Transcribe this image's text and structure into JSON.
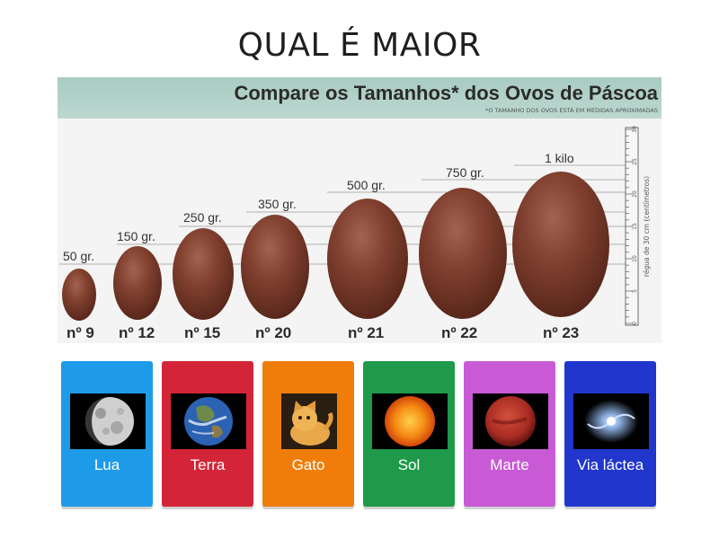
{
  "title": "QUAL É MAIOR",
  "figure": {
    "heading": "Compare os Tamanhos* dos Ovos de Páscoa",
    "note": "*O TAMANHO DOS OVOS ESTÁ EM MEDIDAS APROXIMADAS",
    "ruler_label": "régua de 30 cm (centímetros)",
    "eggs": [
      {
        "weight": "50 gr.",
        "number": "nº 9"
      },
      {
        "weight": "150 gr.",
        "number": "nº 12"
      },
      {
        "weight": "250 gr.",
        "number": "nº 15"
      },
      {
        "weight": "350 gr.",
        "number": "nº 20"
      },
      {
        "weight": "500 gr.",
        "number": "nº 21"
      },
      {
        "weight": "750 gr.",
        "number": "nº 22"
      },
      {
        "weight": "1 kilo",
        "number": "nº 23"
      }
    ],
    "ruler_ticks": [
      "0",
      "5",
      "10",
      "15",
      "20",
      "25",
      "30"
    ]
  },
  "cards": [
    {
      "label": "Lua",
      "color": "#1e9be8",
      "image": "moon-image"
    },
    {
      "label": "Terra",
      "color": "#d42538",
      "image": "earth-image"
    },
    {
      "label": "Gato",
      "color": "#f07d0a",
      "image": "kitten-image"
    },
    {
      "label": "Sol",
      "color": "#1f9a4a",
      "image": "sun-image"
    },
    {
      "label": "Marte",
      "color": "#c85ad6",
      "image": "mars-image"
    },
    {
      "label": "Via láctea",
      "color": "#2036cc",
      "image": "galaxy-image"
    }
  ]
}
